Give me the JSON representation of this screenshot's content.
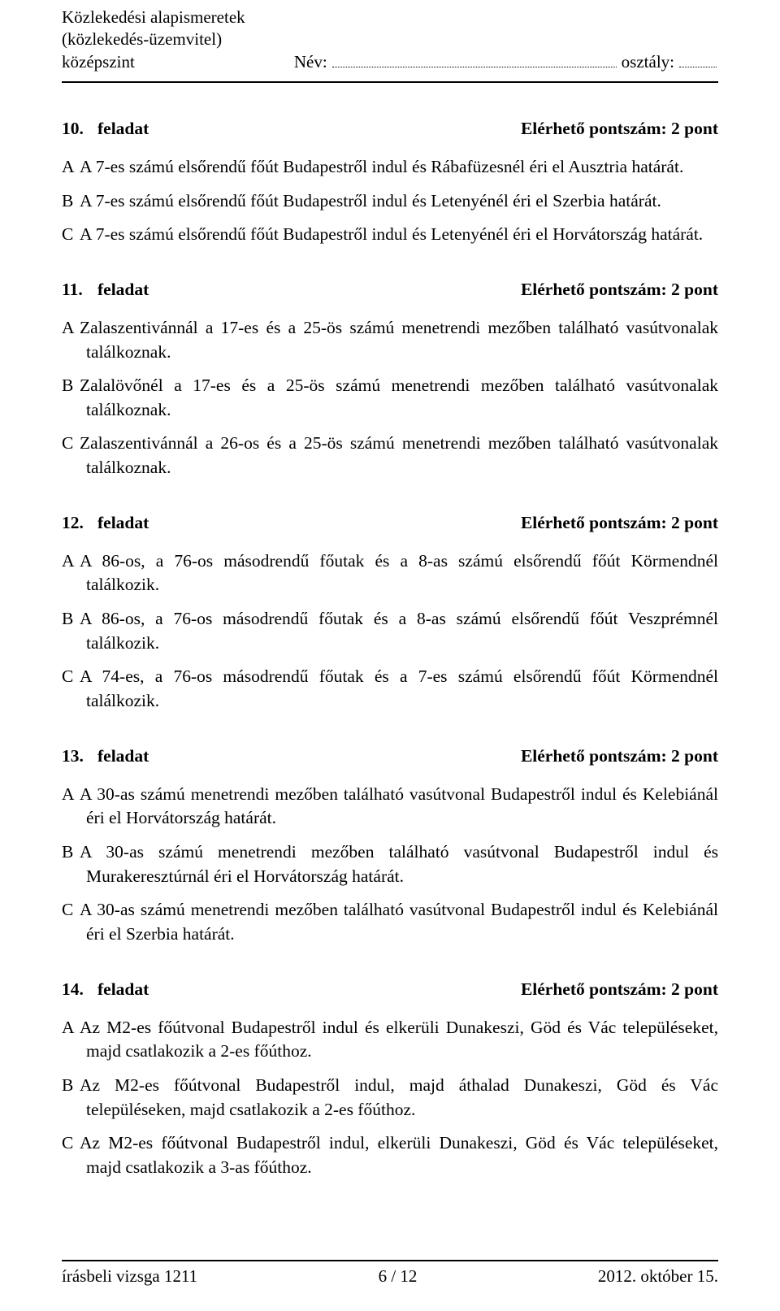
{
  "header": {
    "line1": "Közlekedési alapismeretek",
    "line2": "(közlekedés-üzemvitel) középszint",
    "name_label": "Név:",
    "class_label": "osztály:"
  },
  "tasks": [
    {
      "number": "10.",
      "label": "feladat",
      "points": "Elérhető pontszám: 2 pont",
      "options": [
        {
          "letter": "A",
          "text": "A 7-es számú elsőrendű főút Budapestről indul és Rábafüzesnél éri el Ausztria határát."
        },
        {
          "letter": "B",
          "text": "A 7-es számú elsőrendű főút Budapestről indul és Letenyénél éri el Szerbia határát."
        },
        {
          "letter": "C",
          "text": "A 7-es számú elsőrendű főút Budapestről indul és Letenyénél éri el Horvátország határát."
        }
      ]
    },
    {
      "number": "11.",
      "label": "feladat",
      "points": "Elérhető pontszám: 2 pont",
      "options": [
        {
          "letter": "A",
          "text": "Zalaszentivánnál a 17-es és a 25-ös számú menetrendi mezőben található vasútvonalak találkoznak."
        },
        {
          "letter": "B",
          "text": "Zalalövőnél a 17-es és a 25-ös számú menetrendi mezőben található vasútvonalak találkoznak."
        },
        {
          "letter": "C",
          "text": "Zalaszentivánnál a 26-os és a 25-ös számú menetrendi mezőben található vasútvonalak találkoznak."
        }
      ]
    },
    {
      "number": "12.",
      "label": "feladat",
      "points": "Elérhető pontszám: 2 pont",
      "options": [
        {
          "letter": "A",
          "text": "A 86-os, a 76-os másodrendű főutak és a 8-as számú elsőrendű főút Körmendnél találkozik."
        },
        {
          "letter": "B",
          "text": "A 86-os, a 76-os másodrendű főutak és a 8-as számú elsőrendű főút Veszprémnél találkozik."
        },
        {
          "letter": "C",
          "text": "A 74-es, a 76-os másodrendű főutak és a 7-es számú elsőrendű főút Körmendnél találkozik."
        }
      ]
    },
    {
      "number": "13.",
      "label": "feladat",
      "points": "Elérhető pontszám: 2 pont",
      "options": [
        {
          "letter": "A",
          "text": "A 30-as számú menetrendi mezőben található vasútvonal Budapestről indul és Kelebiánál éri el Horvátország határát."
        },
        {
          "letter": "B",
          "text": "A 30-as számú menetrendi mezőben található vasútvonal Budapestről indul és Murakeresztúrnál éri el Horvátország határát."
        },
        {
          "letter": "C",
          "text": "A 30-as számú menetrendi mezőben található vasútvonal Budapestről indul és Kelebiánál éri el Szerbia határát."
        }
      ]
    },
    {
      "number": "14.",
      "label": "feladat",
      "points": "Elérhető pontszám: 2 pont",
      "options": [
        {
          "letter": "A",
          "text": "Az M2-es főútvonal Budapestről indul és elkerüli Dunakeszi, Göd és Vác településeket, majd csatlakozik a 2-es főúthoz."
        },
        {
          "letter": "B",
          "text": "Az M2-es főútvonal Budapestről indul, majd áthalad Dunakeszi, Göd és Vác településeken, majd csatlakozik a 2-es főúthoz."
        },
        {
          "letter": "C",
          "text": "Az M2-es főútvonal Budapestről indul, elkerüli Dunakeszi, Göd és Vác településeket, majd csatlakozik a 3-as főúthoz."
        }
      ]
    }
  ],
  "footer": {
    "left": "írásbeli vizsga 1211",
    "center": "6 / 12",
    "right": "2012. október 15."
  }
}
